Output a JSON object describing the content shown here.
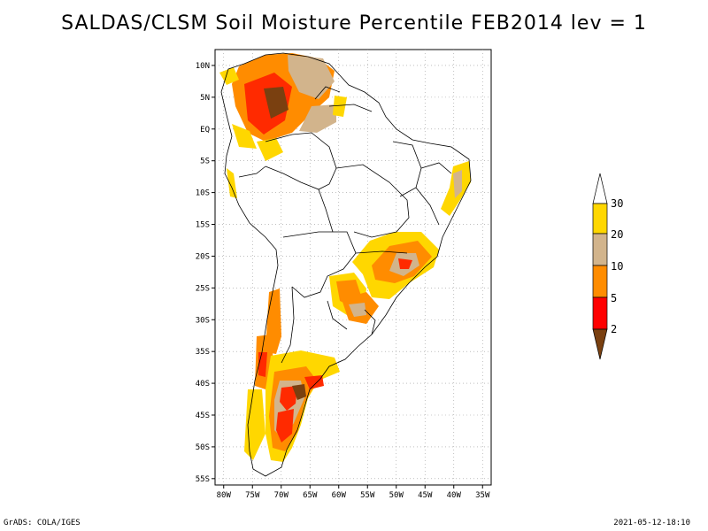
{
  "title": "SALDAS/CLSM Soil Moisture Percentile FEB2014 lev = 1",
  "map": {
    "lat_labels": [
      "10N",
      "5N",
      "EQ",
      "5S",
      "10S",
      "15S",
      "20S",
      "25S",
      "30S",
      "35S",
      "40S",
      "45S",
      "50S",
      "55S"
    ],
    "lat_values": [
      10,
      5,
      0,
      -5,
      -10,
      -15,
      -20,
      -25,
      -30,
      -35,
      -40,
      -45,
      -50,
      -55
    ],
    "lon_labels": [
      "80W",
      "75W",
      "70W",
      "65W",
      "60W",
      "55W",
      "50W",
      "45W",
      "40W",
      "35W"
    ],
    "lon_values": [
      -80,
      -75,
      -70,
      -65,
      -60,
      -55,
      -50,
      -45,
      -40,
      -35
    ],
    "lon_range": [
      -81.5,
      -33.5
    ],
    "lat_range": [
      -56,
      12.5
    ]
  },
  "legend": {
    "labels": [
      "2",
      "5",
      "10",
      "20",
      "30"
    ],
    "colors": {
      "lt2": "#7a4010",
      "2to5": "#ff0000",
      "5to10": "#ff8c00",
      "10to20": "#d2b48c",
      "20to30": "#ffd700",
      "gt30": "#ffffff"
    }
  },
  "footer": {
    "left": "GrADS: COLA/IGES",
    "right": "2021-05-12-18:10"
  }
}
